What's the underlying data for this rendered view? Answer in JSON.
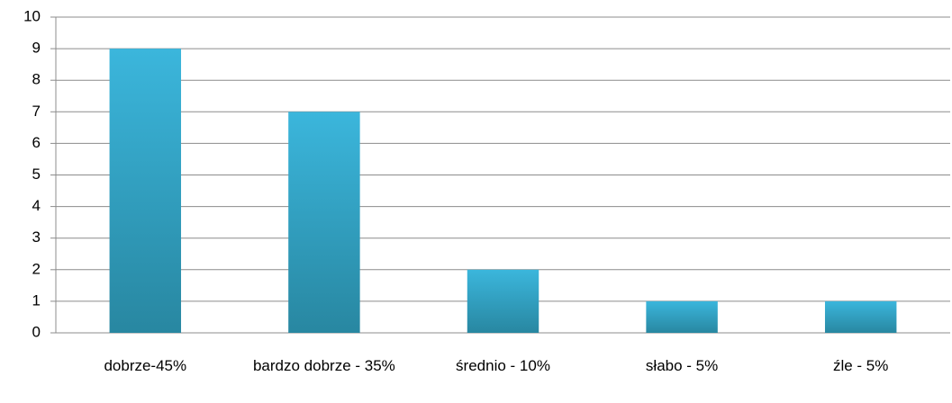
{
  "chart_data": {
    "type": "bar",
    "categories": [
      "dobrze-45%",
      "bardzo dobrze - 35%",
      "średnio - 10%",
      "słabo - 5%",
      "źle - 5%"
    ],
    "values": [
      9,
      7,
      2,
      1,
      1
    ],
    "gradient": [
      "#3bb6dc",
      "#2887a1"
    ],
    "ylim": [
      0,
      10
    ],
    "yticks": [
      0,
      1,
      2,
      3,
      4,
      5,
      6,
      7,
      8,
      9,
      10
    ],
    "grid": true
  }
}
